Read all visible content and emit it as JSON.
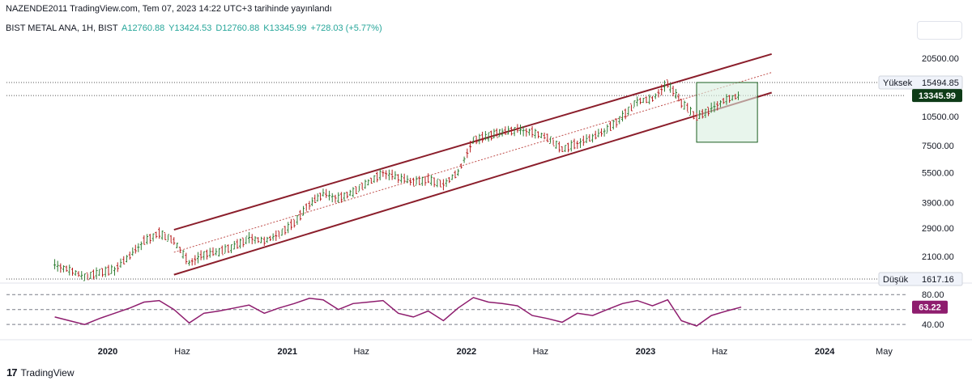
{
  "header": {
    "published_line": "NAZENDE2011 TradingView.com, Tem 07, 2023 14:22 UTC+3 tarihinde yayınlandı"
  },
  "symbol": {
    "name": "BIST METAL ANA, 1H, BIST",
    "open": "A12760.88",
    "high": "Y13424.53",
    "low": "D12760.88",
    "close": "K13345.99",
    "change": "+728.03 (+5.77%)"
  },
  "footer": {
    "brand": "TradingView",
    "logo_glyph": "17"
  },
  "colors": {
    "channel": "#8b1e2b",
    "midline": "#c0504d",
    "rsi": "#8e1d6e",
    "candle": "#2e7d32",
    "box_fill": "#d8eedf",
    "box_stroke": "#1b5e20",
    "last_price_bg": "#0e3b17"
  },
  "chart_data": [
    {
      "type": "candlestick",
      "scale": "log",
      "x_ticks": [
        "2020",
        "Haz",
        "2021",
        "Haz",
        "2022",
        "Haz",
        "2023",
        "Haz",
        "2024",
        "May"
      ],
      "y_ticks": [
        20500.0,
        15494.85,
        13345.99,
        10500.0,
        7500.0,
        5500.0,
        3900.0,
        2900.0,
        2100.0,
        1617.16
      ],
      "y_tick_labels": [
        "20500.00",
        "15494.85",
        "13345.99",
        "10500.00",
        "7500.00",
        "5500.00",
        "3900.00",
        "2900.00",
        "2100.00",
        "1617.16"
      ],
      "ylim": [
        1617.16,
        24000
      ],
      "high_label": "Yüksek",
      "high_value": "15494.85",
      "low_label": "Düşük",
      "low_value": "1617.16",
      "last_price": "13345.99",
      "series": [
        {
          "values": [
            {
              "x": "2019-09",
              "y": 1900
            },
            {
              "x": "2019-10",
              "y": 1800
            },
            {
              "x": "2019-11",
              "y": 1650
            },
            {
              "x": "2019-12",
              "y": 1750
            },
            {
              "x": "2020-01",
              "y": 1800
            },
            {
              "x": "2020-02",
              "y": 2100
            },
            {
              "x": "2020-03",
              "y": 2500
            },
            {
              "x": "2020-04",
              "y": 2750
            },
            {
              "x": "2020-05",
              "y": 2500
            },
            {
              "x": "2020-06",
              "y": 1950
            },
            {
              "x": "2020-07",
              "y": 2150
            },
            {
              "x": "2020-08",
              "y": 2200
            },
            {
              "x": "2020-09",
              "y": 2350
            },
            {
              "x": "2020-10",
              "y": 2600
            },
            {
              "x": "2020-11",
              "y": 2500
            },
            {
              "x": "2020-12",
              "y": 2700
            },
            {
              "x": "2021-01",
              "y": 3100
            },
            {
              "x": "2021-02",
              "y": 3800
            },
            {
              "x": "2021-03",
              "y": 4300
            },
            {
              "x": "2021-04",
              "y": 4100
            },
            {
              "x": "2021-05",
              "y": 4400
            },
            {
              "x": "2021-06",
              "y": 4900
            },
            {
              "x": "2021-07",
              "y": 5500
            },
            {
              "x": "2021-08",
              "y": 5200
            },
            {
              "x": "2021-09",
              "y": 4900
            },
            {
              "x": "2021-10",
              "y": 5100
            },
            {
              "x": "2021-11",
              "y": 4800
            },
            {
              "x": "2021-12",
              "y": 5500
            },
            {
              "x": "2022-01",
              "y": 8000
            },
            {
              "x": "2022-02",
              "y": 8400
            },
            {
              "x": "2022-03",
              "y": 8700
            },
            {
              "x": "2022-04",
              "y": 9000
            },
            {
              "x": "2022-05",
              "y": 8800
            },
            {
              "x": "2022-06",
              "y": 8200
            },
            {
              "x": "2022-07",
              "y": 7200
            },
            {
              "x": "2022-08",
              "y": 7700
            },
            {
              "x": "2022-09",
              "y": 8200
            },
            {
              "x": "2022-10",
              "y": 9000
            },
            {
              "x": "2022-11",
              "y": 10500
            },
            {
              "x": "2022-12",
              "y": 12500
            },
            {
              "x": "2023-01",
              "y": 12800
            },
            {
              "x": "2023-02",
              "y": 15400
            },
            {
              "x": "2023-03",
              "y": 12300
            },
            {
              "x": "2023-04",
              "y": 10300
            },
            {
              "x": "2023-05",
              "y": 11500
            },
            {
              "x": "2023-06",
              "y": 12800
            },
            {
              "x": "2023-07",
              "y": 13346
            }
          ]
        }
      ]
    },
    {
      "type": "line",
      "y_ticks": [
        80,
        63.22,
        40
      ],
      "y_tick_labels": [
        "80.00",
        "63.22",
        "40.00"
      ],
      "ylim": [
        25,
        90
      ],
      "last_value": "63.22",
      "series": [
        {
          "values": [
            {
              "x": "2019-09",
              "y": 50
            },
            {
              "x": "2019-10",
              "y": 45
            },
            {
              "x": "2019-11",
              "y": 40
            },
            {
              "x": "2019-12",
              "y": 48
            },
            {
              "x": "2020-01",
              "y": 55
            },
            {
              "x": "2020-02",
              "y": 62
            },
            {
              "x": "2020-03",
              "y": 70
            },
            {
              "x": "2020-04",
              "y": 72
            },
            {
              "x": "2020-05",
              "y": 60
            },
            {
              "x": "2020-06",
              "y": 42
            },
            {
              "x": "2020-07",
              "y": 55
            },
            {
              "x": "2020-08",
              "y": 58
            },
            {
              "x": "2020-09",
              "y": 62
            },
            {
              "x": "2020-10",
              "y": 66
            },
            {
              "x": "2020-11",
              "y": 55
            },
            {
              "x": "2020-12",
              "y": 62
            },
            {
              "x": "2021-01",
              "y": 68
            },
            {
              "x": "2021-02",
              "y": 75
            },
            {
              "x": "2021-03",
              "y": 73
            },
            {
              "x": "2021-04",
              "y": 60
            },
            {
              "x": "2021-05",
              "y": 68
            },
            {
              "x": "2021-06",
              "y": 70
            },
            {
              "x": "2021-07",
              "y": 72
            },
            {
              "x": "2021-08",
              "y": 55
            },
            {
              "x": "2021-09",
              "y": 50
            },
            {
              "x": "2021-10",
              "y": 58
            },
            {
              "x": "2021-11",
              "y": 45
            },
            {
              "x": "2021-12",
              "y": 62
            },
            {
              "x": "2022-01",
              "y": 76
            },
            {
              "x": "2022-02",
              "y": 70
            },
            {
              "x": "2022-03",
              "y": 68
            },
            {
              "x": "2022-04",
              "y": 65
            },
            {
              "x": "2022-05",
              "y": 52
            },
            {
              "x": "2022-06",
              "y": 48
            },
            {
              "x": "2022-07",
              "y": 43
            },
            {
              "x": "2022-08",
              "y": 55
            },
            {
              "x": "2022-09",
              "y": 52
            },
            {
              "x": "2022-10",
              "y": 60
            },
            {
              "x": "2022-11",
              "y": 68
            },
            {
              "x": "2022-12",
              "y": 72
            },
            {
              "x": "2023-01",
              "y": 65
            },
            {
              "x": "2023-02",
              "y": 73
            },
            {
              "x": "2023-03",
              "y": 45
            },
            {
              "x": "2023-04",
              "y": 38
            },
            {
              "x": "2023-05",
              "y": 52
            },
            {
              "x": "2023-06",
              "y": 58
            },
            {
              "x": "2023-07",
              "y": 63.22
            }
          ]
        }
      ]
    }
  ]
}
